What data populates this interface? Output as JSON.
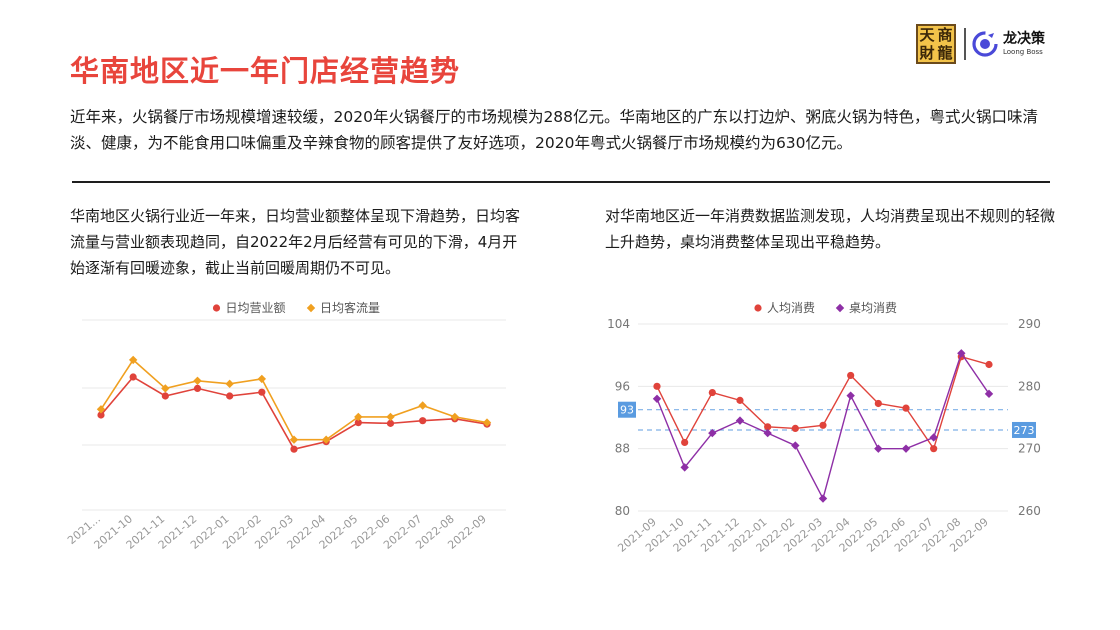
{
  "header": {
    "title": "华南地区近一年门店经营趋势",
    "seal_chars": [
      "天",
      "商",
      "財",
      "龍"
    ],
    "brand_cn": "龙决策",
    "brand_en": "Loong Boss"
  },
  "intro": "近年来，火锅餐厅市场规模增速较缓，2020年火锅餐厅的市场规模为288亿元。华南地区的广东以打边炉、粥底火锅为特色，粤式火锅口味清淡、健康，为不能食用口味偏重及辛辣食物的顾客提供了友好选项，2020年粤式火锅餐厅市场规模约为630亿元。",
  "left_text": "华南地区火锅行业近一年来，日均营业额整体呈现下滑趋势，日均客流量与营业额表现趋同，自2022年2月后经营有可见的下滑，4月开始逐渐有回暖迹象，截止当前回暖周期仍不可见。",
  "right_text": "对华南地区近一年消费数据监测发现，人均消费呈现出不规则的轻微上升趋势，桌均消费整体呈现出平稳趋势。",
  "chart_data": [
    {
      "type": "line",
      "categories": [
        "2021...",
        "2021-10",
        "2021-11",
        "2021-12",
        "2022-01",
        "2022-02",
        "2022-03",
        "2022-04",
        "2022-05",
        "2022-06",
        "2022-07",
        "2022-08",
        "2022-09"
      ],
      "series": [
        {
          "name": "日均营业额",
          "color": "#e0433b",
          "marker": "circle",
          "values": [
            70,
            80,
            75,
            77,
            75,
            76,
            61,
            63,
            68,
            67.8,
            68.5,
            69,
            67.6
          ]
        },
        {
          "name": "日均客流量",
          "color": "#f0a020",
          "marker": "diamond",
          "values": [
            71.5,
            84.5,
            77,
            79,
            78.2,
            79.5,
            63.5,
            63.5,
            69.5,
            69.5,
            72.5,
            69.5,
            68
          ]
        }
      ],
      "ylim": [
        45,
        95
      ],
      "legend": "top-center",
      "grid": true,
      "axis_labels_visible": false
    },
    {
      "type": "line",
      "categories": [
        "2021-09",
        "2021-10",
        "2021-11",
        "2021-12",
        "2022-01",
        "2022-02",
        "2022-03",
        "2022-04",
        "2022-05",
        "2022-06",
        "2022-07",
        "2022-08",
        "2022-09"
      ],
      "series": [
        {
          "name": "人均消费",
          "color": "#e0433b",
          "marker": "circle",
          "axis": "left",
          "values": [
            96,
            88.8,
            95.2,
            94.2,
            90.8,
            90.6,
            91,
            97.4,
            93.8,
            93.2,
            88,
            99.8,
            98.8
          ]
        },
        {
          "name": "桌均消费",
          "color": "#8e2fa6",
          "marker": "diamond",
          "axis": "right",
          "values": [
            278,
            267,
            272.5,
            274.5,
            272.5,
            270.5,
            262,
            278.5,
            270,
            270,
            271.8,
            285.3,
            278.8
          ]
        }
      ],
      "y_left": {
        "min": 80,
        "max": 104,
        "ticks": [
          80,
          88,
          96,
          104
        ]
      },
      "y_right": {
        "min": 260,
        "max": 290,
        "ticks": [
          260,
          270,
          280,
          290
        ]
      },
      "reference_lines": [
        {
          "axis": "left",
          "value": 93,
          "label": "93"
        },
        {
          "axis": "right",
          "value": 273,
          "label": "273"
        }
      ],
      "legend": "top-center",
      "grid": true
    }
  ]
}
